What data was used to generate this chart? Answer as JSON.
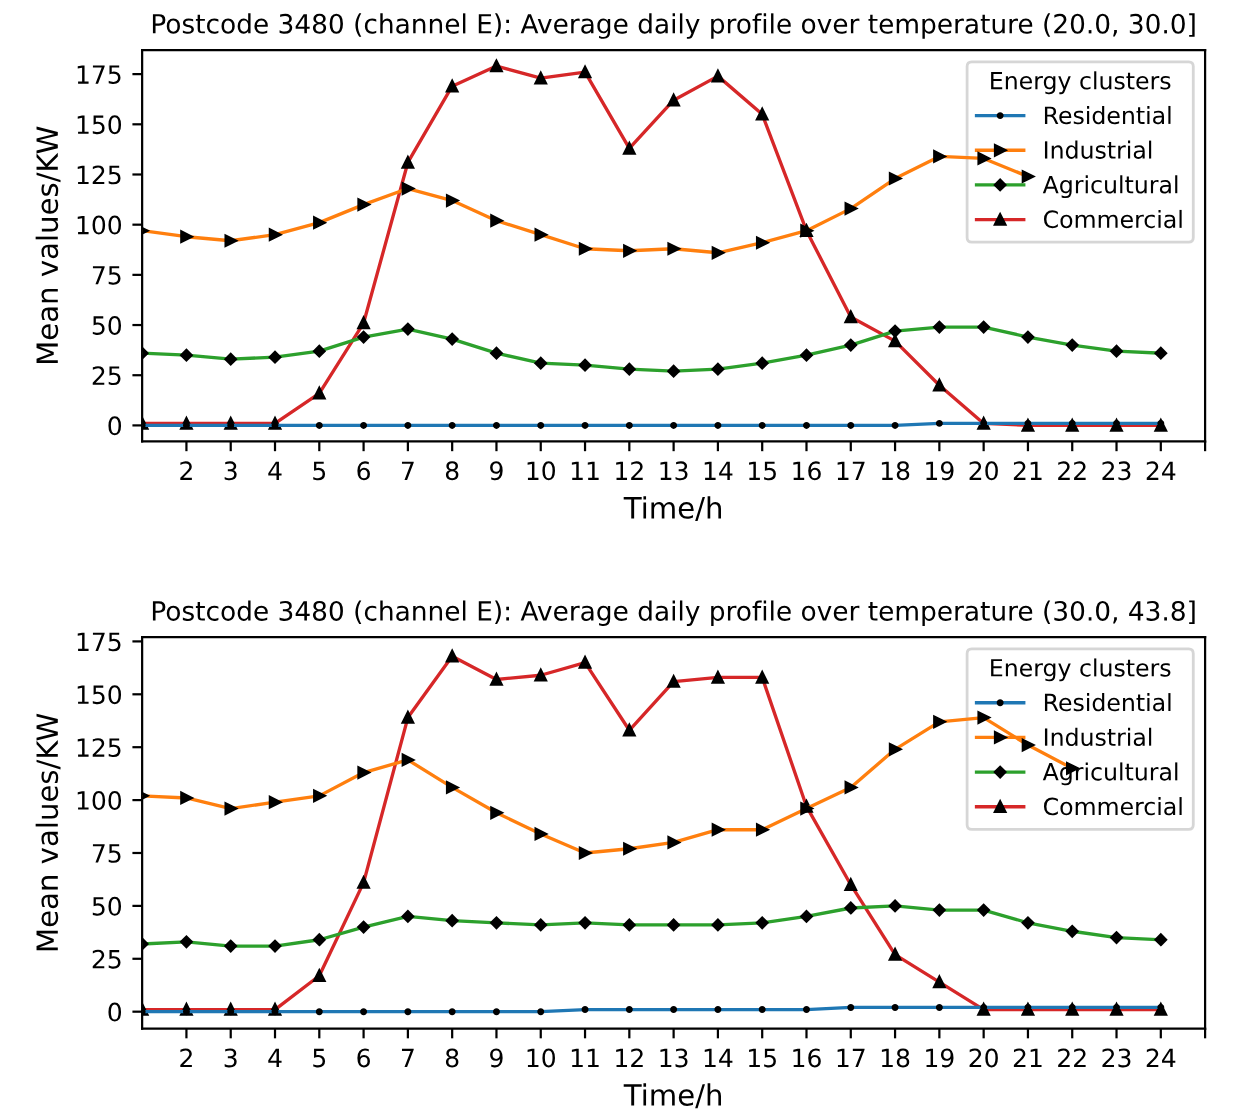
{
  "chart_data": [
    {
      "type": "line",
      "title": "Postcode 3480 (channel E): Average daily profile over temperature (20.0, 30.0]",
      "xlabel": "Time/h",
      "ylabel": "Mean values/KW",
      "legend_title": "Energy clusters",
      "legend": "top right",
      "grid": false,
      "x": [
        1,
        2,
        3,
        4,
        5,
        6,
        7,
        8,
        9,
        10,
        11,
        12,
        13,
        14,
        15,
        16,
        17,
        18,
        19,
        20,
        21,
        22,
        23,
        24
      ],
      "xlim": [
        1,
        25
      ],
      "xticks": [
        2,
        3,
        4,
        5,
        6,
        7,
        8,
        9,
        10,
        11,
        12,
        13,
        14,
        15,
        16,
        17,
        18,
        19,
        20,
        21,
        22,
        23,
        24,
        {
          "value": 25,
          "label": null
        }
      ],
      "ylim": [
        -8,
        187
      ],
      "yticks": [
        0,
        25,
        50,
        75,
        100,
        125,
        150,
        175
      ],
      "series": [
        {
          "name": "Residential",
          "color": "#1f77b4",
          "marker": "circle",
          "values": [
            0,
            0,
            0,
            0,
            0,
            0,
            0,
            0,
            0,
            0,
            0,
            0,
            0,
            0,
            0,
            0,
            0,
            0,
            1,
            1,
            1,
            1,
            1,
            1
          ]
        },
        {
          "name": "Industrial",
          "color": "#ff7f0e",
          "marker": "triangle",
          "values": [
            97,
            94,
            92,
            95,
            101,
            110,
            118,
            112,
            102,
            95,
            88,
            87,
            88,
            86,
            91,
            97,
            108,
            123,
            134,
            133,
            124,
            null,
            null,
            null
          ]
        },
        {
          "name": "Agricultural",
          "color": "#2ca02c",
          "marker": "diamond",
          "values": [
            36,
            35,
            33,
            34,
            37,
            44,
            48,
            43,
            36,
            31,
            30,
            28,
            27,
            28,
            31,
            35,
            40,
            47,
            49,
            49,
            44,
            40,
            37,
            36
          ]
        },
        {
          "name": "Commercial",
          "color": "#d62728",
          "marker": "triangle",
          "values": [
            1,
            1,
            1,
            1,
            16,
            51,
            131,
            169,
            179,
            173,
            176,
            138,
            162,
            174,
            155,
            97,
            54,
            42,
            20,
            1,
            0,
            0,
            0,
            0
          ]
        }
      ]
    },
    {
      "type": "line",
      "title": "Postcode 3480 (channel E): Average daily profile over temperature (30.0, 43.8]",
      "xlabel": "Time/h",
      "ylabel": "Mean values/KW",
      "legend_title": "Energy clusters",
      "legend": "top right",
      "grid": false,
      "x": [
        1,
        2,
        3,
        4,
        5,
        6,
        7,
        8,
        9,
        10,
        11,
        12,
        13,
        14,
        15,
        16,
        17,
        18,
        19,
        20,
        21,
        22,
        23,
        24
      ],
      "xlim": [
        1,
        25
      ],
      "xticks": [
        2,
        3,
        4,
        5,
        6,
        7,
        8,
        9,
        10,
        11,
        12,
        13,
        14,
        15,
        16,
        17,
        18,
        19,
        20,
        21,
        22,
        23,
        24,
        {
          "value": 25,
          "label": null
        }
      ],
      "ylim": [
        -8,
        177
      ],
      "yticks": [
        0,
        25,
        50,
        75,
        100,
        125,
        150,
        175
      ],
      "series": [
        {
          "name": "Residential",
          "color": "#1f77b4",
          "marker": "circle",
          "values": [
            0,
            0,
            0,
            0,
            0,
            0,
            0,
            0,
            0,
            0,
            1,
            1,
            1,
            1,
            1,
            1,
            2,
            2,
            2,
            2,
            2,
            2,
            2,
            2
          ]
        },
        {
          "name": "Industrial",
          "color": "#ff7f0e",
          "marker": "triangle",
          "values": [
            102,
            101,
            96,
            99,
            102,
            113,
            119,
            106,
            94,
            84,
            75,
            77,
            80,
            86,
            86,
            96,
            106,
            124,
            137,
            139,
            126,
            115,
            null,
            null
          ]
        },
        {
          "name": "Agricultural",
          "color": "#2ca02c",
          "marker": "diamond",
          "values": [
            32,
            33,
            31,
            31,
            34,
            40,
            45,
            43,
            42,
            41,
            42,
            41,
            41,
            41,
            42,
            45,
            49,
            50,
            48,
            48,
            42,
            38,
            35,
            34
          ]
        },
        {
          "name": "Commercial",
          "color": "#d62728",
          "marker": "triangle",
          "values": [
            1,
            1,
            1,
            1,
            17,
            61,
            139,
            168,
            157,
            159,
            165,
            133,
            156,
            158,
            158,
            97,
            60,
            27,
            14,
            1,
            1,
            1,
            1,
            1
          ]
        }
      ]
    }
  ]
}
